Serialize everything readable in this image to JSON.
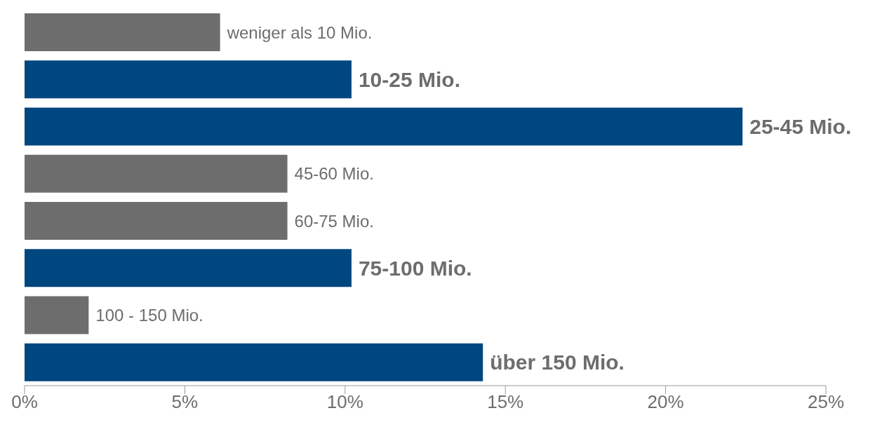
{
  "chart_data": {
    "type": "bar",
    "orientation": "horizontal",
    "categories": [
      "weniger als 10 Mio.",
      "10-25 Mio.",
      "25-45 Mio.",
      "45-60 Mio.",
      "60-75 Mio.",
      "75-100 Mio.",
      "100 - 150 Mio.",
      "über 150 Mio."
    ],
    "values": [
      6.1,
      10.2,
      22.4,
      8.2,
      8.2,
      10.2,
      2.0,
      14.3
    ],
    "colors": [
      "#6d6d6d",
      "#00467f",
      "#00467f",
      "#6d6d6d",
      "#6d6d6d",
      "#00467f",
      "#6d6d6d",
      "#00467f"
    ],
    "xlim": [
      0,
      25
    ],
    "xticks": [
      {
        "value": 0,
        "label": "0%"
      },
      {
        "value": 5,
        "label": "5%"
      },
      {
        "value": 10,
        "label": "10%"
      },
      {
        "value": 15,
        "label": "15%"
      },
      {
        "value": 20,
        "label": "20%"
      },
      {
        "value": 25,
        "label": "25%"
      }
    ],
    "tick_labels": "x"
  }
}
